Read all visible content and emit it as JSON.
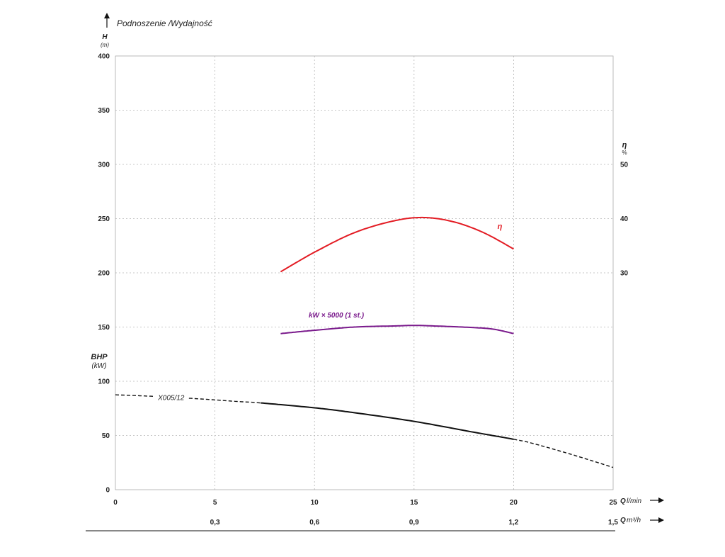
{
  "chart_data": {
    "type": "line",
    "title": "Podnoszenie /Wydajność",
    "x_primary": {
      "label": "Q",
      "unit": "l/min",
      "range": [
        0,
        25
      ],
      "ticks": [
        "0",
        "5",
        "10",
        "15",
        "20",
        "25"
      ]
    },
    "x_secondary": {
      "label": "Q",
      "unit": "m³/h",
      "ticks": [
        "0,3",
        "0,6",
        "0,9",
        "1,2",
        "1,5"
      ],
      "tick_positions_lmin": [
        5,
        10,
        15,
        20,
        25
      ]
    },
    "y_left": {
      "label": "H",
      "unit": "(m)",
      "range": [
        0,
        400
      ],
      "ticks": [
        "0",
        "50",
        "100",
        "150",
        "200",
        "250",
        "300",
        "350",
        "400"
      ],
      "grid": true
    },
    "y_bhp": {
      "label": "BHP",
      "unit": "(kW)"
    },
    "y_right": {
      "label": "η",
      "unit": "%",
      "ticks": [
        "30",
        "40",
        "50"
      ],
      "tick_positions_h": [
        200,
        250,
        300
      ]
    },
    "series": [
      {
        "name": "X005/12",
        "kind": "head",
        "color": "#111111",
        "x": [
          0,
          2,
          4,
          6,
          7.3,
          10,
          12,
          15,
          18,
          20,
          21,
          23,
          25
        ],
        "y": [
          87.5,
          86,
          84,
          81.5,
          80,
          75.5,
          71,
          63,
          53,
          46.5,
          42.5,
          32,
          20.5
        ],
        "solid_range": [
          7.3,
          20
        ],
        "label_at_x": 2.8
      },
      {
        "name": "kW × 5000 (1 st.)",
        "kind": "power",
        "color": "#7a1a8c",
        "x": [
          8.3,
          10,
          12,
          14,
          15,
          16,
          18,
          19,
          20
        ],
        "y": [
          144,
          147,
          150,
          151,
          151.5,
          151,
          149.5,
          148,
          144
        ]
      },
      {
        "name": "η",
        "kind": "efficiency",
        "color": "#e31b23",
        "x": [
          8.3,
          10,
          12,
          14,
          15.5,
          17,
          18.5,
          20
        ],
        "y": [
          201,
          219,
          237,
          248,
          251,
          247,
          237,
          222
        ]
      }
    ]
  }
}
